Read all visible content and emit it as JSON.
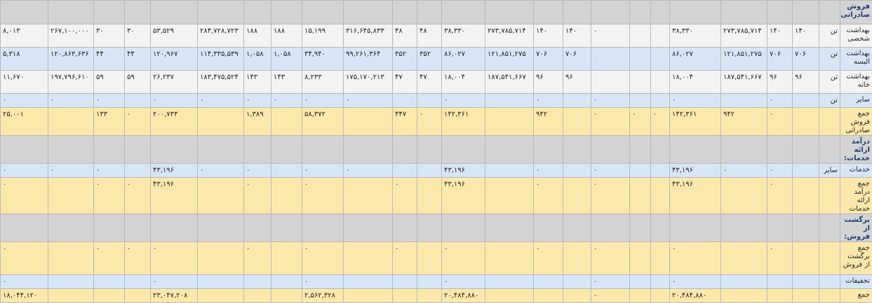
{
  "table": {
    "rows": [
      {
        "label": "فروش صادراتی:"
      },
      {
        "label": "بهداشت شخصی",
        "unit": "تن",
        "cells": [
          "۱۴۰",
          "۱۴۰",
          "۲۷۳,۷۸۵,۷۱۴",
          "۳۸,۳۳۰",
          null,
          null,
          "۰",
          "۱۴۰",
          "۱۴۰",
          "۲۷۳,۷۸۵,۷۱۴",
          "۳۸,۳۳۰",
          "۴۸",
          "۴۸",
          "۳۱۶,۶۴۵,۸۳۳",
          "۱۵,۱۹۹",
          "۱۸۸",
          "۱۸۸",
          "۲۸۴,۷۲۸,۷۲۳",
          "۵۳,۵۲۹",
          "۳۰",
          "۳۰",
          "۲۶۷,۱۰۰,۰۰۰",
          "۸,۰۱۳"
        ]
      },
      {
        "label": "بهداشت البسه",
        "unit": "تن",
        "cells": [
          "۷۰۶",
          "۷۰۶",
          "۱۲۱,۸۵۱,۲۷۵",
          "۸۶,۰۲۷",
          null,
          null,
          null,
          "۷۰۶",
          "۷۰۶",
          "۱۲۱,۸۵۱,۲۷۵",
          "۸۶,۰۲۷",
          "۳۵۲",
          "۳۵۲",
          "۹۹,۲۶۱,۳۶۴",
          "۳۴,۹۴۰",
          "۱,۰۵۸",
          "۱,۰۵۸",
          "۱۱۴,۳۳۵,۵۳۹",
          "۱۲۰,۹۶۷",
          "۴۴",
          "۴۴",
          "۱۲۰,۸۶۳,۶۳۶",
          "۵,۳۱۸"
        ]
      },
      {
        "label": "بهداشت خانه",
        "unit": "تن",
        "cells": [
          "۹۶",
          "۹۶",
          "۱۸۷,۵۴۱,۶۶۷",
          "۱۸,۰۰۴",
          null,
          null,
          null,
          "۹۶",
          "۹۶",
          "۱۸۷,۵۴۱,۶۶۷",
          "۱۸,۰۰۴",
          "۴۷",
          "۴۷",
          "۱۷۵,۱۷۰,۲۱۳",
          "۸,۲۳۳",
          "۱۴۳",
          "۱۴۳",
          "۱۸۳,۴۷۵,۵۲۴",
          "۲۶,۲۳۷",
          "۵۹",
          "۵۹",
          "۱۹۷,۷۹۶,۶۱۰",
          "۱۱,۶۷۰"
        ]
      },
      {
        "label": "سایر",
        "unit": "تن",
        "cells": [
          null,
          "۰",
          null,
          "۰",
          null,
          null,
          "۰",
          null,
          "۰",
          null,
          "۰",
          null,
          null,
          "۰",
          "۰",
          "۰",
          "۰",
          "۰",
          "۰",
          null,
          "۰",
          "۰",
          "۰"
        ]
      },
      {
        "label": "جمع فروش صادراتی",
        "cells": [
          null,
          "۰",
          "۹۴۲",
          "۱۴۲,۳۶۱",
          "۰",
          "۰",
          "۰",
          null,
          "۹۴۲",
          null,
          "۱۴۲,۳۶۱",
          "۰",
          "۴۴۷",
          null,
          "۵۸,۳۷۲",
          null,
          "۱,۳۸۹",
          null,
          "۲۰۰,۷۳۳",
          "۰",
          "۱۳۳",
          null,
          "۲۵,۰۰۱"
        ]
      },
      {
        "label": "درآمد ارائه خدمات:"
      },
      {
        "label": "خدمات",
        "unit": "سایر",
        "cells": [
          null,
          "۰",
          "۰",
          "۴۳,۱۹۶",
          null,
          null,
          "۰",
          null,
          "۰",
          null,
          "۴۳,۱۹۶",
          null,
          null,
          "۰",
          "۰",
          null,
          "۰",
          "۰",
          "۴۳,۱۹۶",
          null,
          "۰",
          "۰",
          "۰"
        ]
      },
      {
        "label": "جمع درآمد ارائه خدمات",
        "cells": [
          null,
          "۰",
          null,
          "۴۳,۱۹۶",
          null,
          null,
          "۰",
          null,
          "۰",
          null,
          "۴۳,۱۹۶",
          null,
          "۰",
          null,
          "۰",
          null,
          "۰",
          null,
          "۴۳,۱۹۶",
          "۰",
          "۰",
          null,
          "۰"
        ]
      },
      {
        "label": "برگشت از فروش:"
      },
      {
        "label": "جمع برگشت از فروش",
        "cells": [
          null,
          "۰",
          null,
          "۰",
          null,
          null,
          "۰",
          null,
          "۰",
          null,
          "۰",
          null,
          "۰",
          null,
          "۰",
          null,
          "۰",
          null,
          "۰",
          "۰",
          "۰",
          null,
          "۰"
        ]
      },
      {
        "label": "تخفیفات",
        "cells": [
          null,
          null,
          null,
          "۰",
          null,
          null,
          "۰",
          null,
          null,
          null,
          "۰",
          null,
          null,
          null,
          "۰",
          null,
          null,
          null,
          "۰",
          null,
          null,
          null,
          "۰"
        ]
      },
      {
        "label": "جمع",
        "cells": [
          null,
          null,
          null,
          "۲۰,۴۸۴,۸۸۰",
          null,
          null,
          "۰",
          null,
          null,
          null,
          "۲۰,۴۸۴,۸۸۰",
          null,
          null,
          null,
          "۲,۵۶۲,۳۲۸",
          null,
          null,
          null,
          "۲۳,۰۴۷,۲۰۸",
          null,
          null,
          null,
          "۱۸,۰۴۴,۱۲۰"
        ]
      }
    ]
  }
}
